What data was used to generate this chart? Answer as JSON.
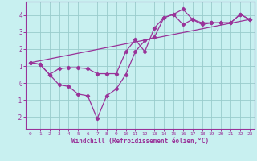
{
  "xlabel": "Windchill (Refroidissement éolien,°C)",
  "bg_color": "#c8f0f0",
  "line_color": "#993399",
  "grid_color": "#99cccc",
  "x_ticks": [
    0,
    1,
    2,
    3,
    4,
    5,
    6,
    7,
    8,
    9,
    10,
    11,
    12,
    13,
    14,
    15,
    16,
    17,
    18,
    19,
    20,
    21,
    22,
    23
  ],
  "y_ticks": [
    -2,
    -1,
    0,
    1,
    2,
    3,
    4
  ],
  "ylim": [
    -2.7,
    4.8
  ],
  "xlim": [
    -0.5,
    23.5
  ],
  "curve1_x": [
    0,
    1,
    2,
    3,
    4,
    5,
    6,
    7,
    8,
    9,
    10,
    11,
    12,
    13,
    14,
    15,
    16,
    17,
    18,
    19,
    20,
    21,
    22,
    23
  ],
  "curve1_y": [
    1.2,
    1.1,
    0.5,
    -0.1,
    -0.2,
    -0.65,
    -0.75,
    -2.1,
    -0.75,
    -0.35,
    0.5,
    1.85,
    2.5,
    2.7,
    3.85,
    4.05,
    4.35,
    3.75,
    3.45,
    3.55,
    3.55,
    3.55,
    4.05,
    3.75
  ],
  "curve2_x": [
    0,
    1,
    2,
    3,
    4,
    5,
    6,
    7,
    8,
    9,
    10,
    11,
    12,
    13,
    14,
    15,
    16,
    17,
    18,
    19,
    20,
    21,
    22,
    23
  ],
  "curve2_y": [
    1.2,
    1.1,
    0.5,
    0.85,
    0.9,
    0.9,
    0.85,
    0.55,
    0.55,
    0.55,
    1.85,
    2.55,
    1.85,
    3.25,
    3.85,
    4.05,
    3.45,
    3.75,
    3.55,
    3.55,
    3.55,
    3.55,
    4.05,
    3.75
  ],
  "trend_x": [
    0,
    23
  ],
  "trend_y": [
    1.2,
    3.75
  ]
}
